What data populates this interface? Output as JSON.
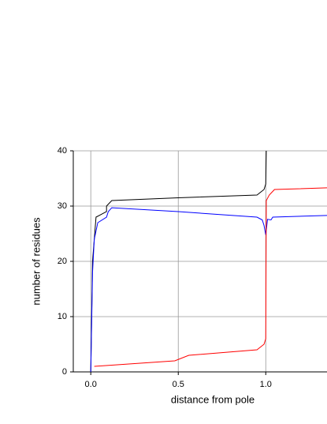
{
  "chart_data": {
    "type": "line",
    "x_label": "distance from pole",
    "y_label": "number of residues",
    "xlim": [
      -0.1,
      1.35
    ],
    "ylim": [
      0,
      40
    ],
    "xticks": [
      {
        "value": 0,
        "label": "0.0"
      },
      0.5,
      {
        "value": 1,
        "label": "1.0"
      }
    ],
    "yticks": [
      0,
      10,
      20,
      30,
      40
    ],
    "grid": true,
    "series": [
      {
        "name": "black",
        "color": "#000000",
        "x": [
          0,
          0.01,
          0.03,
          0.09,
          0.09,
          0.12,
          0.5,
          0.95,
          0.99,
          1.0,
          1.003
        ],
        "values": [
          0,
          20,
          28,
          29,
          30,
          31,
          31.5,
          32,
          33,
          34,
          40
        ]
      },
      {
        "name": "blue",
        "color": "#0000ff",
        "x": [
          0,
          0.01,
          0.02,
          0.04,
          0.09,
          0.1,
          0.12,
          0.5,
          0.95,
          0.98,
          0.99,
          1.0,
          1.01,
          1.03,
          1.04,
          1.35
        ],
        "values": [
          0,
          18,
          24,
          27,
          28,
          29,
          29.7,
          29,
          28,
          27.5,
          26.5,
          24.8,
          27.6,
          27.5,
          28,
          28.3
        ]
      },
      {
        "name": "red",
        "color": "#ff0000",
        "x": [
          0.02,
          0.48,
          0.56,
          0.95,
          0.99,
          1.0,
          1.003,
          1.02,
          1.05,
          1.35
        ],
        "values": [
          1,
          2,
          3,
          4,
          5,
          6,
          31,
          32,
          33,
          33.3
        ]
      }
    ]
  }
}
